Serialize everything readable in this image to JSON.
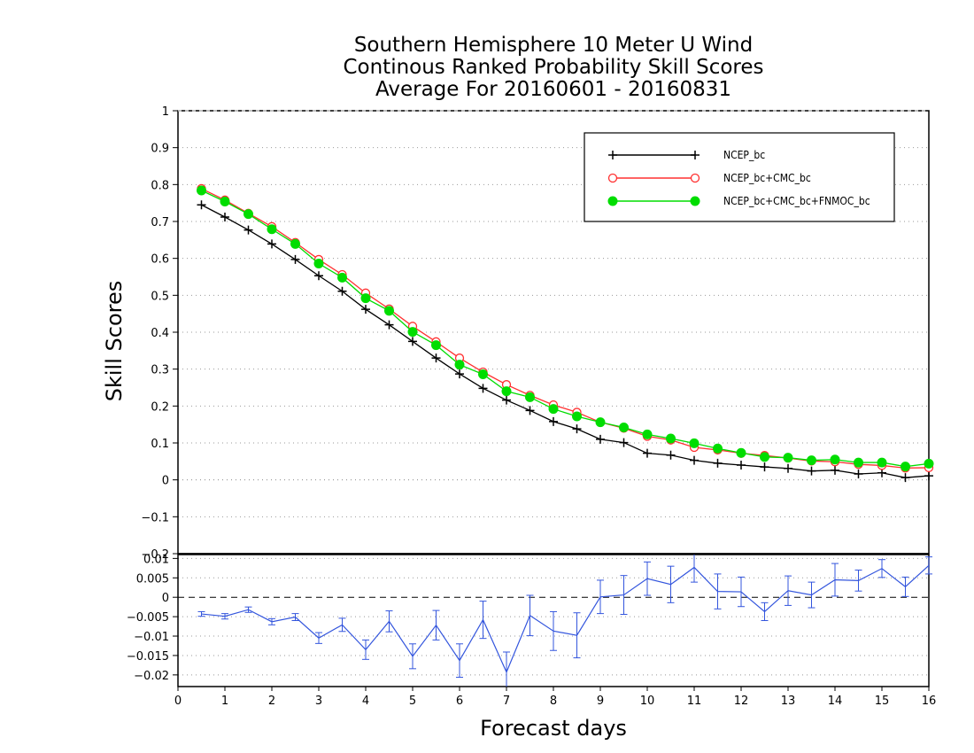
{
  "chart_data": [
    {
      "type": "line",
      "title": [
        "Southern Hemisphere 10 Meter U Wind",
        "Continous Ranked Probability Skill Scores",
        "Average For 20160601 - 20160831"
      ],
      "xlabel": "Forecast days",
      "ylabel": "Skill Scores",
      "xlim": [
        0,
        16
      ],
      "ylim": [
        -0.2,
        1
      ],
      "yticks": [
        "1",
        "0.9",
        "0.8",
        "0.7",
        "0.6",
        "0.5",
        "0.4",
        "0.3",
        "0.2",
        "0.1",
        "0",
        "−0.1",
        "−0.2"
      ],
      "grid": true,
      "legend_position": "top-right",
      "x": [
        0.5,
        1,
        1.5,
        2,
        2.5,
        3,
        3.5,
        4,
        4.5,
        5,
        5.5,
        6,
        6.5,
        7,
        7.5,
        8,
        8.5,
        9,
        9.5,
        10,
        10.5,
        11,
        11.5,
        12,
        12.5,
        13,
        13.5,
        14,
        14.5,
        15,
        15.5,
        16
      ],
      "series": [
        {
          "name": "NCEP_bc",
          "color": "#000000",
          "marker": "plus",
          "values": [
            0.745,
            0.712,
            0.677,
            0.639,
            0.597,
            0.553,
            0.511,
            0.462,
            0.42,
            0.375,
            0.33,
            0.287,
            0.248,
            0.216,
            0.188,
            0.158,
            0.138,
            0.11,
            0.101,
            0.072,
            0.067,
            0.053,
            0.045,
            0.04,
            0.035,
            0.031,
            0.024,
            0.026,
            0.016,
            0.019,
            0.006,
            0.011
          ]
        },
        {
          "name": "NCEP_bc+CMC_bc",
          "color": "#ff3030",
          "marker": "open-circle",
          "values": [
            0.789,
            0.758,
            0.722,
            0.686,
            0.643,
            0.597,
            0.556,
            0.506,
            0.463,
            0.416,
            0.374,
            0.33,
            0.292,
            0.258,
            0.229,
            0.203,
            0.183,
            0.156,
            0.14,
            0.118,
            0.108,
            0.088,
            0.081,
            0.072,
            0.066,
            0.059,
            0.051,
            0.049,
            0.042,
            0.039,
            0.032,
            0.033
          ]
        },
        {
          "name": "NCEP_bc+CMC_bc+FNMOC_bc",
          "color": "#00dd00",
          "marker": "filled-circle",
          "values": [
            0.784,
            0.754,
            0.72,
            0.679,
            0.639,
            0.586,
            0.548,
            0.492,
            0.458,
            0.401,
            0.365,
            0.312,
            0.286,
            0.24,
            0.224,
            0.192,
            0.172,
            0.156,
            0.142,
            0.123,
            0.112,
            0.099,
            0.085,
            0.073,
            0.062,
            0.06,
            0.053,
            0.055,
            0.047,
            0.047,
            0.036,
            0.044
          ]
        }
      ]
    },
    {
      "type": "line",
      "xlabel": "Forecast days",
      "xticks": [
        "0",
        "1",
        "2",
        "3",
        "4",
        "5",
        "6",
        "7",
        "8",
        "9",
        "10",
        "11",
        "12",
        "13",
        "14",
        "15",
        "16"
      ],
      "ylim": [
        -0.023,
        0.011
      ],
      "yticks": [
        "0.01",
        "0.005",
        "0",
        "−0.005",
        "−0.01",
        "−0.015",
        "−0.02"
      ],
      "reference_line": 0,
      "grid": true,
      "x": [
        0.5,
        1,
        1.5,
        2,
        2.5,
        3,
        3.5,
        4,
        4.5,
        5,
        5.5,
        6,
        6.5,
        7,
        7.5,
        8,
        8.5,
        9,
        9.5,
        10,
        10.5,
        11,
        11.5,
        12,
        12.5,
        13,
        13.5,
        14,
        14.5,
        15,
        15.5,
        16
      ],
      "series": [
        {
          "color": "#3355dd",
          "error_bars": true,
          "values": [
            -0.0043,
            -0.0049,
            -0.0032,
            -0.0063,
            -0.0051,
            -0.0105,
            -0.0071,
            -0.0135,
            -0.0062,
            -0.0152,
            -0.0072,
            -0.0163,
            -0.0058,
            -0.0193,
            -0.0047,
            -0.0087,
            -0.0098,
            0.0001,
            0.0006,
            0.0048,
            0.0033,
            0.0077,
            0.0015,
            0.0014,
            -0.0037,
            0.0017,
            0.0006,
            0.0045,
            0.0043,
            0.0074,
            0.0027,
            0.0082
          ],
          "errors": [
            0.0006,
            0.0007,
            0.0007,
            0.0008,
            0.0009,
            0.0014,
            0.0017,
            0.0025,
            0.0027,
            0.0032,
            0.0038,
            0.0043,
            0.0048,
            0.0052,
            0.0052,
            0.005,
            0.0058,
            0.0043,
            0.005,
            0.0043,
            0.0047,
            0.0038,
            0.0045,
            0.0038,
            0.0023,
            0.0038,
            0.0033,
            0.0042,
            0.0027,
            0.0023,
            0.0025,
            0.0022
          ]
        }
      ]
    }
  ]
}
